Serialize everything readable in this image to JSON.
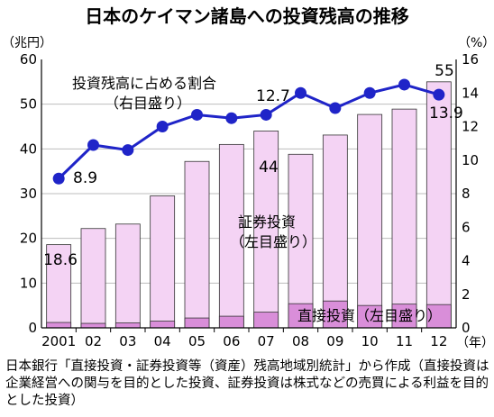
{
  "chart_data": {
    "type": "bar+line",
    "title": "日本のケイマン諸島への投資残高の推移",
    "left_unit": "（兆円）",
    "right_unit": "（%）",
    "x_unit": "（年）",
    "categories": [
      "2001",
      "02",
      "03",
      "04",
      "05",
      "06",
      "07",
      "08",
      "09",
      "10",
      "11",
      "12"
    ],
    "left_axis": {
      "range": [
        0,
        60
      ],
      "ticks": [
        0,
        10,
        20,
        30,
        40,
        50,
        60
      ]
    },
    "right_axis": {
      "range": [
        0,
        16
      ],
      "ticks": [
        0,
        2,
        4,
        6,
        8,
        10,
        12,
        14,
        16
      ]
    },
    "series": [
      {
        "name": "証券投資（左目盛り）",
        "type": "bar",
        "axis": "left",
        "color": "#f4d3f4",
        "values": [
          18.6,
          22.2,
          23.2,
          29.5,
          37.2,
          41.0,
          44.0,
          38.8,
          43.1,
          47.7,
          48.9,
          55.0
        ]
      },
      {
        "name": "直接投資（左目盛り）",
        "type": "bar",
        "axis": "left",
        "color": "#d98ed9",
        "values": [
          1.2,
          1.0,
          1.1,
          1.5,
          2.2,
          2.6,
          3.5,
          5.4,
          6.0,
          5.0,
          5.3,
          5.2
        ]
      },
      {
        "name": "投資残高に占める割合（右目盛り）",
        "type": "line",
        "axis": "right",
        "color": "#1f24c8",
        "values": [
          8.9,
          10.9,
          10.6,
          12.0,
          12.7,
          12.5,
          12.7,
          14.0,
          13.1,
          14.0,
          14.5,
          13.9
        ]
      }
    ],
    "data_labels": {
      "bar_first": "18.6",
      "bar_2007": "44",
      "bar_last": "55",
      "line_first": "8.9",
      "line_2007": "12.7",
      "line_last": "13.9"
    },
    "annotations": {
      "line_label_1": "投資残高に占める割合",
      "line_label_2": "（右目盛り）",
      "securities_label_1": "証券投資",
      "securities_label_2": "（左目盛り）",
      "direct_label": "直接投資（左目盛り）"
    }
  },
  "source_note": "日本銀行「直接投資・証券投資等（資産）残高地域別統計」から作成（直接投資は企業経営への関与を目的とした投資、証券投資は株式などの売買による利益を目的とした投資）"
}
